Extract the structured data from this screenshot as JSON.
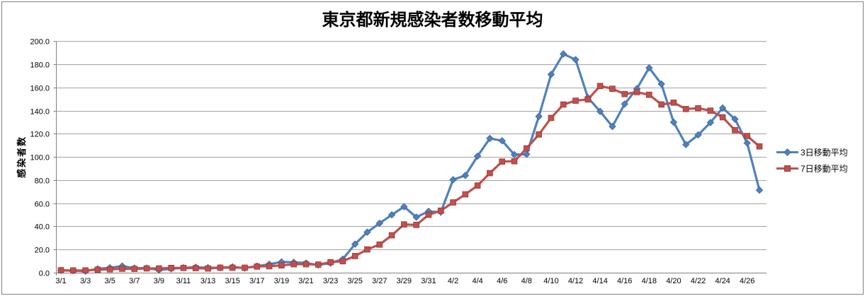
{
  "chart_data": {
    "type": "line",
    "title": "東京都新規感染者数移動平均",
    "ylabel": "感染者数",
    "ylim": [
      0,
      200
    ],
    "ytick_step": 20,
    "ytick_decimals": 1,
    "xtick_every": 2,
    "grid": true,
    "legend_position": "right",
    "x": [
      "3/1",
      "3/2",
      "3/3",
      "3/4",
      "3/5",
      "3/6",
      "3/7",
      "3/8",
      "3/9",
      "3/10",
      "3/11",
      "3/12",
      "3/13",
      "3/14",
      "3/15",
      "3/16",
      "3/17",
      "3/18",
      "3/19",
      "3/20",
      "3/21",
      "3/22",
      "3/23",
      "3/24",
      "3/25",
      "3/26",
      "3/27",
      "3/28",
      "3/29",
      "3/30",
      "3/31",
      "4/1",
      "4/2",
      "4/3",
      "4/4",
      "4/5",
      "4/6",
      "4/7",
      "4/8",
      "4/9",
      "4/10",
      "4/11",
      "4/12",
      "4/13",
      "4/14",
      "4/15",
      "4/16",
      "4/17",
      "4/18",
      "4/19",
      "4/20",
      "4/21",
      "4/22",
      "4/23",
      "4/24",
      "4/25",
      "4/26",
      "4/27"
    ],
    "visible_xtick_labels": [
      "3/1",
      "3/3",
      "3/5",
      "3/7",
      "3/9",
      "3/11",
      "3/13",
      "3/15",
      "3/17",
      "3/19",
      "3/21",
      "3/23",
      "3/25",
      "3/27",
      "3/29",
      "3/31",
      "4/2",
      "4/4",
      "4/6",
      "4/8",
      "4/10",
      "4/12",
      "4/14",
      "4/16",
      "4/18",
      "4/20",
      "4/22",
      "4/24",
      "4/26"
    ],
    "series": [
      {
        "name": "3日移動平均",
        "color": "#4F81BD",
        "marker": "diamond",
        "marker_border": "#3A6497",
        "values": [
          2.0,
          1.7,
          1.3,
          3.3,
          4.3,
          5.7,
          4.0,
          4.0,
          2.3,
          3.3,
          4.3,
          4.7,
          4.3,
          4.3,
          5.0,
          4.0,
          5.7,
          7.3,
          9.3,
          9.0,
          8.3,
          6.7,
          8.3,
          11.7,
          24.7,
          35.0,
          42.7,
          50.0,
          57.0,
          48.0,
          53.0,
          52.3,
          80.3,
          84.0,
          100.7,
          116.0,
          114.0,
          102.0,
          102.3,
          135.0,
          171.3,
          189.0,
          184.0,
          151.3,
          139.3,
          126.3,
          145.7,
          159.0,
          177.0,
          163.0,
          130.0,
          110.7,
          119.0,
          129.7,
          142.3,
          132.7,
          112.0,
          71.3
        ]
      },
      {
        "name": "7日移動平均",
        "color": "#C0504D",
        "marker": "square",
        "marker_border": "#983735",
        "values": [
          2.1,
          1.9,
          2.0,
          2.6,
          2.9,
          3.4,
          3.3,
          3.7,
          3.7,
          4.1,
          4.1,
          3.9,
          3.6,
          4.3,
          4.3,
          4.3,
          5.3,
          5.6,
          6.3,
          7.3,
          7.3,
          7.0,
          9.1,
          9.9,
          14.4,
          20.1,
          24.3,
          32.3,
          41.7,
          41.3,
          50.0,
          53.6,
          60.7,
          67.7,
          75.3,
          86.0,
          96.0,
          96.3,
          107.4,
          119.4,
          133.7,
          145.3,
          148.6,
          149.7,
          161.3,
          158.9,
          154.3,
          156.0,
          153.7,
          145.3,
          146.9,
          141.4,
          142.1,
          140.0,
          134.3,
          123.1,
          118.1,
          109.1
        ]
      }
    ],
    "colors": {
      "gridline": "#A3A3A3",
      "axis": "#808080",
      "text": "#000000",
      "background": "#FFFFFF",
      "border": "#7F7F7F"
    }
  }
}
